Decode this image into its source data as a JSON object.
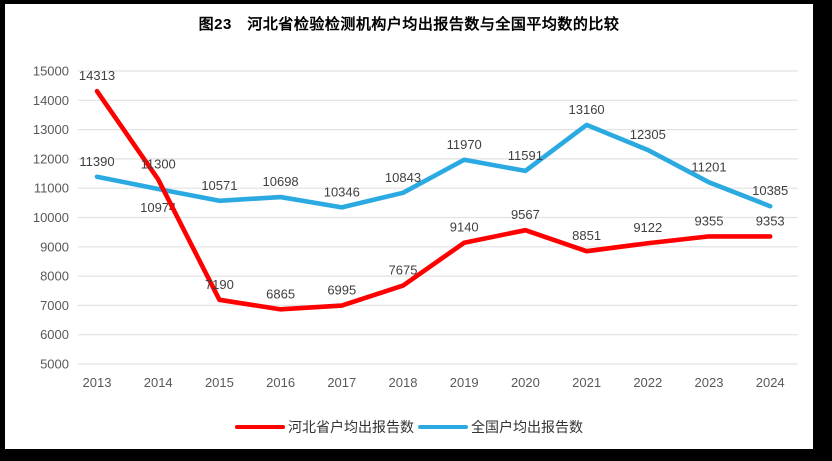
{
  "page": {
    "background_color": "#000000",
    "canvas_color": "#ffffff"
  },
  "chart_data": {
    "type": "line",
    "title": "图23　河北省检验检测机构户均出报告数与全国平均数的比较",
    "categories": [
      "2013",
      "2014",
      "2015",
      "2016",
      "2017",
      "2018",
      "2019",
      "2020",
      "2021",
      "2022",
      "2023",
      "2024"
    ],
    "series": [
      {
        "name": "河北省户均出报告数",
        "color": "#ff0000",
        "values": [
          14313,
          11300,
          7190,
          6865,
          6995,
          7675,
          9140,
          9567,
          8851,
          9122,
          9355,
          9353
        ]
      },
      {
        "name": "全国户均出报告数",
        "color": "#2baae2",
        "values": [
          11390,
          10974,
          10571,
          10698,
          10346,
          10843,
          11970,
          11591,
          13160,
          12305,
          11201,
          10385
        ]
      }
    ],
    "ylim": [
      5000,
      15000
    ],
    "ytick_step": 1000,
    "yticks": [
      5000,
      6000,
      7000,
      8000,
      9000,
      10000,
      11000,
      12000,
      13000,
      14000,
      15000
    ],
    "grid": true,
    "legend_position": "bottom",
    "below_labels": [
      [
        1,
        1
      ]
    ],
    "axis_label_color": "#595959",
    "data_label_color": "#404040",
    "gridline_color": "#e2e2e2"
  }
}
